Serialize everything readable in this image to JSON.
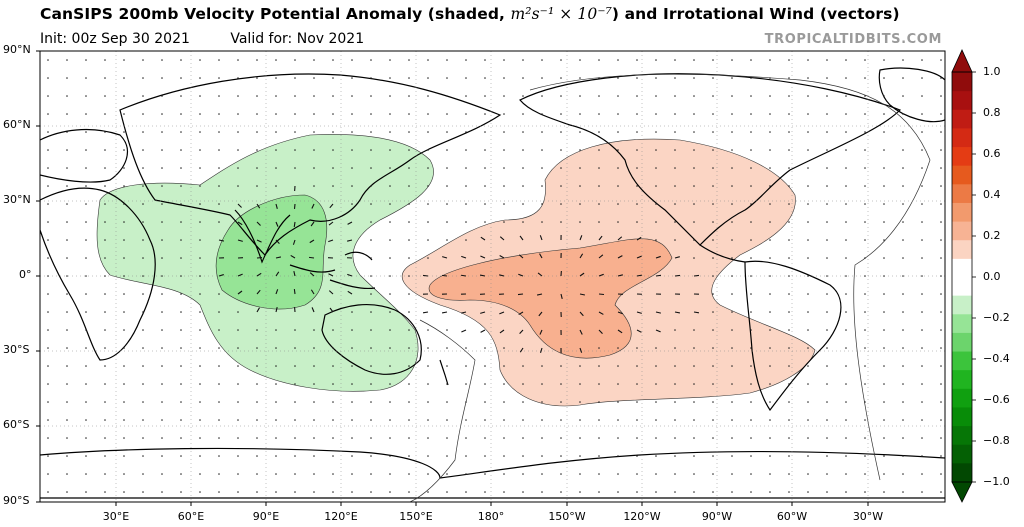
{
  "header": {
    "title_main": "CanSIPS 200mb Velocity Potential Anomaly (shaded, ",
    "title_units": "m²s⁻¹ × 10⁻⁷",
    "title_tail": ") and Irrotational Wind (vectors)",
    "init": "Init: 00z Sep 30 2021",
    "valid": "Valid for: Nov 2021",
    "brand": "TROPICALTIDBITS.COM"
  },
  "axes": {
    "lat_ticks": [
      "90°N",
      "60°N",
      "30°N",
      "0°",
      "30°S",
      "60°S",
      "90°S"
    ],
    "lon_ticks": [
      "30°E",
      "60°E",
      "90°E",
      "120°E",
      "150°E",
      "180°",
      "150°W",
      "120°W",
      "90°W",
      "60°W",
      "30°W"
    ]
  },
  "colorbar": {
    "ticks": [
      "1.0",
      "0.8",
      "0.6",
      "0.4",
      "0.2",
      "0.0",
      "−0.2",
      "−0.4",
      "−0.6",
      "−0.8",
      "−1.0"
    ],
    "positive_colors": [
      "#fbd4c2",
      "#f7b394",
      "#f29a6d",
      "#ec7a45",
      "#e65a1e",
      "#e43c14",
      "#d42a14",
      "#c01c14",
      "#a81010",
      "#900c0c"
    ],
    "negative_colors": [
      "#c8f0c8",
      "#96e496",
      "#6cd46c",
      "#3cc43c",
      "#20b420",
      "#10a010",
      "#088c08",
      "#067606",
      "#046004",
      "#024802"
    ]
  },
  "map": {
    "central_longitude": "180°",
    "projection": "equirectangular",
    "shading": {
      "negative_center": "Maritime Continent / Indian Ocean",
      "positive_center": "Central-East Pacific"
    }
  }
}
